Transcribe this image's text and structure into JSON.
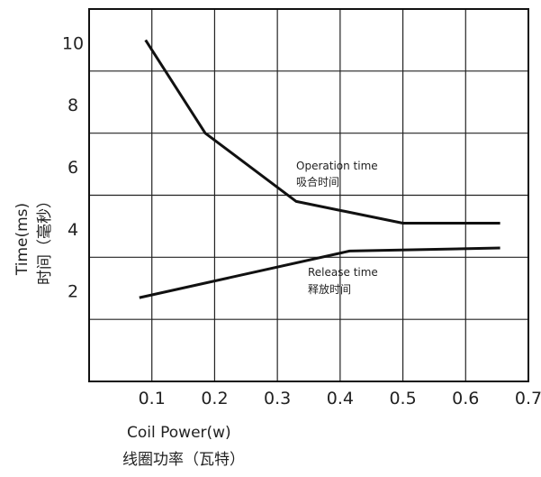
{
  "chart_data": {
    "type": "line",
    "xlabel": "Coil Power(w)",
    "xlabel_cn": "线圈功率（瓦特）",
    "ylabel": "Time(ms)",
    "ylabel_cn": "时间（毫秒）",
    "xlim": [
      0,
      0.7
    ],
    "ylim": [
      0,
      12
    ],
    "x_ticks": [
      "0.1",
      "0.2",
      "0.3",
      "0.4",
      "0.5",
      "0.6",
      "0.7"
    ],
    "y_ticks": [
      "2",
      "4",
      "6",
      "8",
      "10"
    ],
    "grid": true,
    "series": [
      {
        "name": "Operation time",
        "name_cn": "吸合时间",
        "x": [
          0.09,
          0.185,
          0.33,
          0.5,
          0.655
        ],
        "y": [
          11.0,
          8.0,
          5.8,
          5.1,
          5.1
        ]
      },
      {
        "name": "Release time",
        "name_cn": "释放时间",
        "x": [
          0.08,
          0.415,
          0.655
        ],
        "y": [
          2.7,
          4.2,
          4.3
        ]
      }
    ]
  }
}
